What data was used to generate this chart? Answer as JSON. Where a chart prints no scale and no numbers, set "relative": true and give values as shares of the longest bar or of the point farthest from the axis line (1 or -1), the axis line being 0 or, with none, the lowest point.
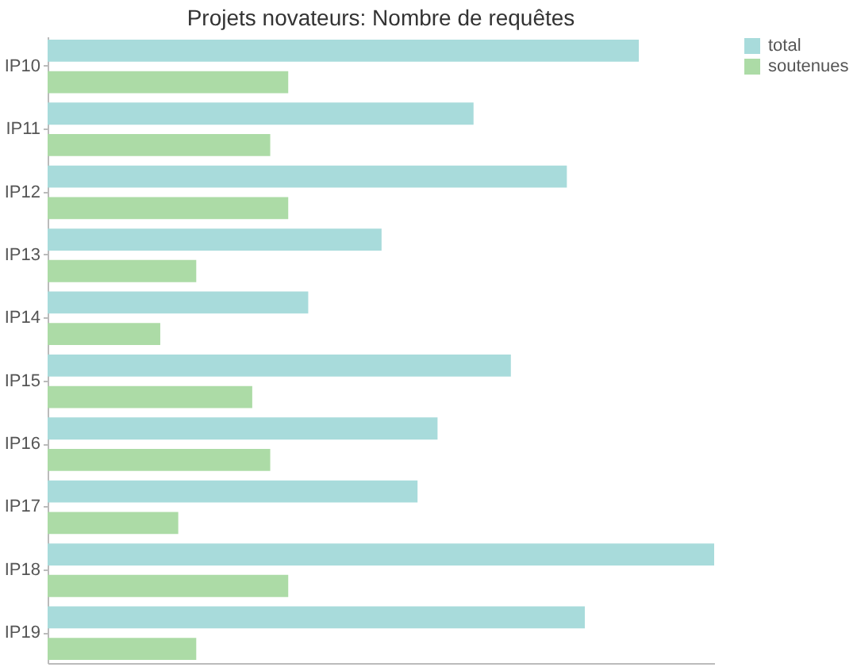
{
  "chart_data": {
    "type": "bar",
    "orientation": "horizontal",
    "relative": true,
    "title": "Projets novateurs: Nombre de requêtes",
    "categories": [
      "IP10",
      "IP11",
      "IP12",
      "IP13",
      "IP14",
      "IP15",
      "IP16",
      "IP17",
      "IP18",
      "IP19"
    ],
    "series": [
      {
        "name": "total",
        "color": "#a8dbdb",
        "values": [
          0.887,
          0.639,
          0.779,
          0.501,
          0.391,
          0.695,
          0.585,
          0.555,
          1,
          0.806
        ]
      },
      {
        "name": "soutenues",
        "color": "#acdba6",
        "values": [
          0.361,
          0.334,
          0.361,
          0.223,
          0.169,
          0.307,
          0.334,
          0.196,
          0.361,
          0.223
        ]
      }
    ],
    "legend": "right",
    "grid": false,
    "tick_labels": "y"
  }
}
